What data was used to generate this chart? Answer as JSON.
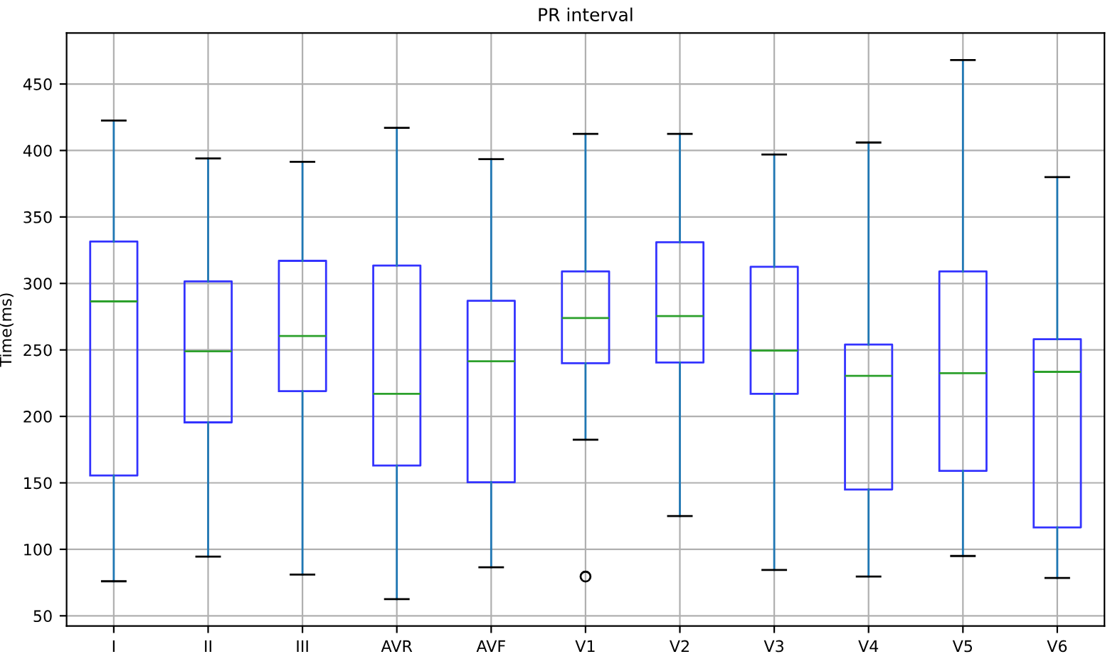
{
  "chart_data": {
    "type": "box",
    "title": "PR interval",
    "ylabel": "Time(ms)",
    "categories": [
      "I",
      "II",
      "III",
      "AVR",
      "AVF",
      "V1",
      "V2",
      "V3",
      "V4",
      "V5",
      "V6"
    ],
    "boxes": [
      {
        "low": 76,
        "q1": 155.5,
        "median": 286.5,
        "q3": 331.5,
        "high": 422.5
      },
      {
        "low": 94.5,
        "q1": 195.5,
        "median": 249,
        "q3": 301.5,
        "high": 394
      },
      {
        "low": 81,
        "q1": 219,
        "median": 260.5,
        "q3": 317,
        "high": 391.5
      },
      {
        "low": 62.5,
        "q1": 163,
        "median": 217,
        "q3": 313.5,
        "high": 417
      },
      {
        "low": 86.5,
        "q1": 150.5,
        "median": 241.5,
        "q3": 287,
        "high": 393.5
      },
      {
        "low": 182.5,
        "q1": 240,
        "median": 274,
        "q3": 309,
        "high": 412.5,
        "outliers": [
          79.5
        ]
      },
      {
        "low": 125,
        "q1": 240.5,
        "median": 275.5,
        "q3": 331,
        "high": 412.5
      },
      {
        "low": 84.5,
        "q1": 217,
        "median": 249.5,
        "q3": 312.5,
        "high": 397
      },
      {
        "low": 79.5,
        "q1": 145,
        "median": 230.5,
        "q3": 254,
        "high": 406
      },
      {
        "low": 95,
        "q1": 159,
        "median": 232.5,
        "q3": 309,
        "high": 468
      },
      {
        "low": 78.5,
        "q1": 116.5,
        "median": 233.5,
        "q3": 258,
        "high": 380
      }
    ],
    "color": "#3333ff",
    "ylim": [
      42.3,
      488.4
    ],
    "yticks": [
      50,
      100,
      150,
      200,
      250,
      300,
      350,
      400,
      450
    ],
    "grid": true
  }
}
